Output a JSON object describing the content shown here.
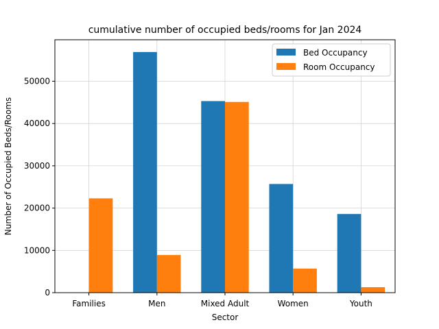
{
  "chart_data": {
    "type": "bar",
    "title": "cumulative number of occupied beds/rooms for Jan 2024",
    "xlabel": "Sector",
    "ylabel": "Number of Occupied Beds/Rooms",
    "categories": [
      "Families",
      "Men",
      "Mixed Adult",
      "Women",
      "Youth"
    ],
    "series": [
      {
        "name": "Bed Occupancy",
        "color": "#1f77b4",
        "values": [
          0,
          56900,
          45300,
          25700,
          18600
        ]
      },
      {
        "name": "Room Occupancy",
        "color": "#ff7f0e",
        "values": [
          22300,
          8900,
          45100,
          5700,
          1300
        ]
      }
    ],
    "ylim": [
      0,
      59800
    ],
    "yticks": [
      0,
      10000,
      20000,
      30000,
      40000,
      50000
    ],
    "grid": true,
    "legend_position": "top-right"
  }
}
